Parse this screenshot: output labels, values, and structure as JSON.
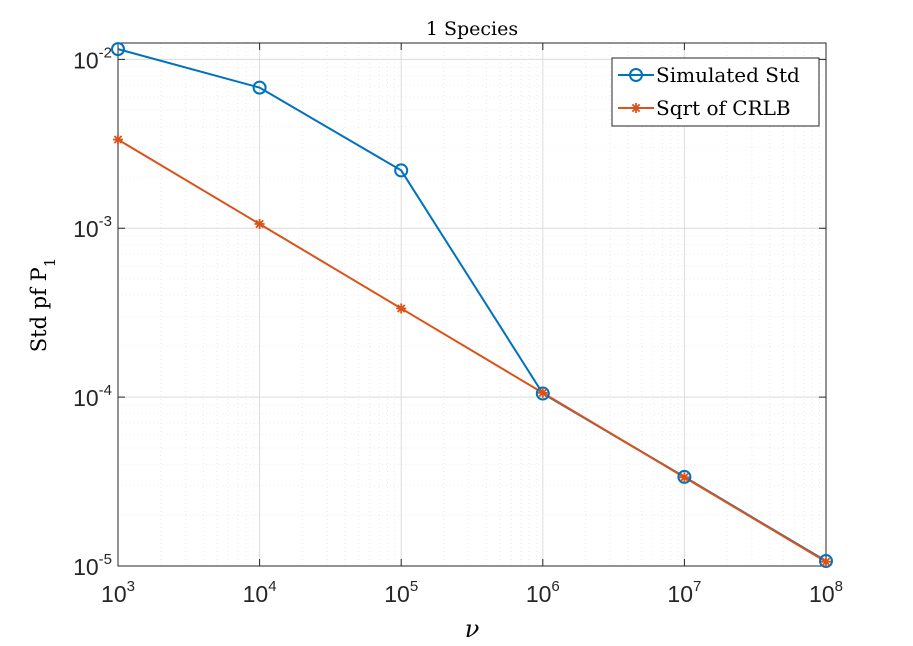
{
  "chart_data": {
    "type": "line",
    "title": "1 Species",
    "xlabel": "ν",
    "ylabel": "Std pf P",
    "ylabel_subscript": "1",
    "xscale": "log",
    "yscale": "log",
    "xlim": [
      1000,
      100000000
    ],
    "ylim": [
      1e-05,
      0.0125
    ],
    "grid": true,
    "minor_grid": true,
    "legend_position": "top-right",
    "x_ticks": [
      {
        "value": 1000,
        "base": "10",
        "exp": "3"
      },
      {
        "value": 10000,
        "base": "10",
        "exp": "4"
      },
      {
        "value": 100000,
        "base": "10",
        "exp": "5"
      },
      {
        "value": 1000000,
        "base": "10",
        "exp": "6"
      },
      {
        "value": 10000000,
        "base": "10",
        "exp": "7"
      },
      {
        "value": 100000000,
        "base": "10",
        "exp": "8"
      }
    ],
    "y_ticks": [
      {
        "value": 1e-05,
        "base": "10",
        "exp": "-5"
      },
      {
        "value": 0.0001,
        "base": "10",
        "exp": "-4"
      },
      {
        "value": 0.001,
        "base": "10",
        "exp": "-3"
      },
      {
        "value": 0.01,
        "base": "10",
        "exp": "-2"
      }
    ],
    "x": [
      1000,
      10000,
      100000,
      1000000,
      10000000,
      100000000
    ],
    "series": [
      {
        "name": "Simulated Std",
        "color": "#0072BD",
        "marker": "circle",
        "values": [
          0.0115,
          0.0068,
          0.0022,
          0.000105,
          3.37e-05,
          1.07e-05
        ]
      },
      {
        "name": "Sqrt of CRLB",
        "color": "#D95319",
        "marker": "asterisk",
        "values": [
          0.00335,
          0.00106,
          0.000335,
          0.000106,
          3.35e-05,
          1.06e-05
        ]
      }
    ]
  }
}
